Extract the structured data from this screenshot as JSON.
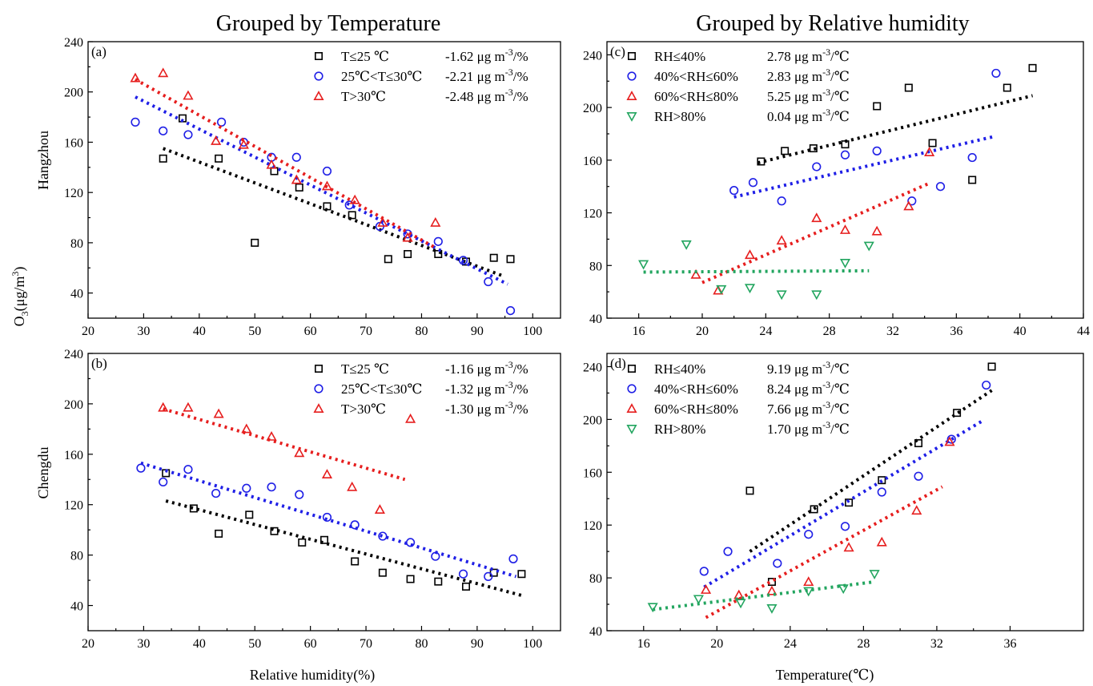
{
  "titles": {
    "left": "Grouped by Temperature",
    "right": "Grouped by Relative humidity"
  },
  "row_labels": {
    "top": "Hangzhou",
    "bottom": "Chengdu"
  },
  "shared_ylabel": {
    "main": "O",
    "sub": "3",
    "unit": "(μg/m",
    "sup": "3",
    "close": ")"
  },
  "xlabels": {
    "left": "Relative humidity(%)",
    "right": "Temperature(℃)"
  },
  "colors": {
    "black": "#000000",
    "blue": "#1f1fe6",
    "red": "#e61e1e",
    "green": "#22a55f"
  },
  "chart_data": [
    {
      "id": "a",
      "panel_label": "(a)",
      "type": "scatter",
      "xlim": [
        20,
        105
      ],
      "ylim": [
        20,
        240
      ],
      "xticks": [
        20,
        30,
        40,
        50,
        60,
        70,
        80,
        90,
        100
      ],
      "yticks": [
        40,
        80,
        120,
        160,
        200,
        240
      ],
      "legend_position": "top-right",
      "series": [
        {
          "name": "T≤25 ℃",
          "slope": "-1.62 μg m",
          "slope_exp": "-3",
          "slope_unit": "/%",
          "marker": "square",
          "color": "black",
          "points": [
            [
              33.5,
              147
            ],
            [
              37,
              179
            ],
            [
              43.5,
              147
            ],
            [
              50,
              80
            ],
            [
              53.5,
              137
            ],
            [
              58,
              124
            ],
            [
              63,
              109
            ],
            [
              67.5,
              102
            ],
            [
              74,
              67
            ],
            [
              77.5,
              71
            ],
            [
              83,
              71
            ],
            [
              88,
              65
            ],
            [
              93,
              68
            ],
            [
              96,
              67
            ]
          ],
          "trend": [
            [
              33.5,
              155
            ],
            [
              95,
              53
            ]
          ]
        },
        {
          "name": "25℃<T≤30℃",
          "slope": "-2.21 μg m",
          "slope_exp": "-3",
          "slope_unit": "/%",
          "marker": "circle",
          "color": "blue",
          "points": [
            [
              28.5,
              176
            ],
            [
              33.5,
              169
            ],
            [
              38,
              166
            ],
            [
              44,
              176
            ],
            [
              48,
              160
            ],
            [
              53,
              148
            ],
            [
              57.5,
              148
            ],
            [
              63,
              137
            ],
            [
              67,
              110
            ],
            [
              72.5,
              93
            ],
            [
              77.5,
              87
            ],
            [
              83,
              81
            ],
            [
              87.5,
              66
            ],
            [
              92,
              49
            ],
            [
              96,
              26
            ]
          ],
          "trend": [
            [
              28.5,
              196
            ],
            [
              95.5,
              47
            ]
          ]
        },
        {
          "name": "T>30℃",
          "slope": "-2.48 μg m",
          "slope_exp": "-3",
          "slope_unit": "/%",
          "marker": "triangle-up",
          "color": "red",
          "points": [
            [
              28.5,
              211
            ],
            [
              33.5,
              215
            ],
            [
              38,
              197
            ],
            [
              43,
              161
            ],
            [
              48,
              158
            ],
            [
              53,
              142
            ],
            [
              57.5,
              130
            ],
            [
              63,
              125
            ],
            [
              68,
              114
            ],
            [
              73,
              96
            ],
            [
              77.5,
              84
            ],
            [
              82.5,
              96
            ]
          ],
          "trend": [
            [
              28.5,
              210
            ],
            [
              82.5,
              76
            ]
          ]
        }
      ]
    },
    {
      "id": "b",
      "panel_label": "(b)",
      "type": "scatter",
      "xlim": [
        20,
        105
      ],
      "ylim": [
        20,
        240
      ],
      "xticks": [
        20,
        30,
        40,
        50,
        60,
        70,
        80,
        90,
        100
      ],
      "yticks": [
        40,
        80,
        120,
        160,
        200,
        240
      ],
      "legend_position": "top-right",
      "series": [
        {
          "name": "T≤25 ℃",
          "slope": "-1.16 μg m",
          "slope_exp": "-3",
          "slope_unit": "/%",
          "marker": "square",
          "color": "black",
          "points": [
            [
              34,
              145
            ],
            [
              39,
              117
            ],
            [
              43.5,
              97
            ],
            [
              49,
              112
            ],
            [
              53.5,
              99
            ],
            [
              58.5,
              90
            ],
            [
              62.5,
              92
            ],
            [
              68,
              75
            ],
            [
              73,
              66
            ],
            [
              78,
              61
            ],
            [
              83,
              59
            ],
            [
              88,
              55
            ],
            [
              93,
              66
            ],
            [
              98,
              65
            ]
          ],
          "trend": [
            [
              34,
              123
            ],
            [
              98,
              48
            ]
          ]
        },
        {
          "name": "25℃<T≤30℃",
          "slope": "-1.32 μg m",
          "slope_exp": "-3",
          "slope_unit": "/%",
          "marker": "circle",
          "color": "blue",
          "points": [
            [
              29.5,
              149
            ],
            [
              33.5,
              138
            ],
            [
              38,
              148
            ],
            [
              43,
              129
            ],
            [
              48.5,
              133
            ],
            [
              53,
              134
            ],
            [
              58,
              128
            ],
            [
              63,
              110
            ],
            [
              68,
              104
            ],
            [
              73,
              95
            ],
            [
              78,
              90
            ],
            [
              82.5,
              79
            ],
            [
              87.5,
              65
            ],
            [
              92,
              63
            ],
            [
              96.5,
              77
            ]
          ],
          "trend": [
            [
              29.5,
              153
            ],
            [
              97,
              63
            ]
          ]
        },
        {
          "name": "T>30℃",
          "slope": "-1.30 μg m",
          "slope_exp": "-3",
          "slope_unit": "/%",
          "marker": "triangle-up",
          "color": "red",
          "points": [
            [
              33.5,
              197
            ],
            [
              38,
              197
            ],
            [
              43.5,
              192
            ],
            [
              48.5,
              180
            ],
            [
              53,
              174
            ],
            [
              58,
              161
            ],
            [
              63,
              144
            ],
            [
              67.5,
              134
            ],
            [
              72.5,
              116
            ],
            [
              78,
              188
            ]
          ],
          "trend": [
            [
              33.5,
              196
            ],
            [
              77,
              140
            ]
          ]
        }
      ]
    },
    {
      "id": "c",
      "panel_label": "(c)",
      "type": "scatter",
      "xlim": [
        14,
        44
      ],
      "ylim": [
        40,
        250
      ],
      "xticks": [
        16,
        20,
        24,
        28,
        32,
        36,
        40,
        44
      ],
      "yticks": [
        40,
        80,
        120,
        160,
        200,
        240
      ],
      "legend_position": "top-left",
      "series": [
        {
          "name": "RH≤40%",
          "slope": "2.78 μg m",
          "slope_exp": "-3",
          "slope_unit": "/℃",
          "marker": "square",
          "color": "black",
          "points": [
            [
              23.7,
              159
            ],
            [
              25.2,
              167
            ],
            [
              27,
              169
            ],
            [
              29,
              172
            ],
            [
              31,
              201
            ],
            [
              33,
              215
            ],
            [
              34.5,
              173
            ],
            [
              37,
              145
            ],
            [
              39.2,
              215
            ],
            [
              40.8,
              230
            ]
          ],
          "trend": [
            [
              23.5,
              158
            ],
            [
              40.8,
              209
            ]
          ]
        },
        {
          "name": "40%<RH≤60%",
          "slope": "2.83 μg m",
          "slope_exp": "-3",
          "slope_unit": "/℃",
          "marker": "circle",
          "color": "blue",
          "points": [
            [
              22,
              137
            ],
            [
              23.2,
              143
            ],
            [
              25,
              129
            ],
            [
              27.2,
              155
            ],
            [
              29,
              164
            ],
            [
              31,
              167
            ],
            [
              33.2,
              129
            ],
            [
              35,
              140
            ],
            [
              37,
              162
            ],
            [
              38.5,
              226
            ]
          ],
          "trend": [
            [
              22,
              132
            ],
            [
              38.4,
              178
            ]
          ]
        },
        {
          "name": "60%<RH≤80%",
          "slope": "5.25 μg m",
          "slope_exp": "-3",
          "slope_unit": "/℃",
          "marker": "triangle-up",
          "color": "red",
          "points": [
            [
              19.6,
              73
            ],
            [
              21,
              61
            ],
            [
              23,
              88
            ],
            [
              25,
              99
            ],
            [
              27.2,
              116
            ],
            [
              29,
              107
            ],
            [
              31,
              106
            ],
            [
              33,
              125
            ],
            [
              34.3,
              166
            ]
          ],
          "trend": [
            [
              20,
              67
            ],
            [
              34.4,
              143
            ]
          ]
        },
        {
          "name": "RH>80%",
          "slope": "0.04 μg m",
          "slope_exp": "-3",
          "slope_unit": "/℃",
          "marker": "triangle-down",
          "color": "green",
          "points": [
            [
              16.3,
              81
            ],
            [
              19,
              96
            ],
            [
              21.2,
              62
            ],
            [
              23,
              63
            ],
            [
              25,
              58
            ],
            [
              27.2,
              58
            ],
            [
              29,
              82
            ],
            [
              30.5,
              95
            ]
          ],
          "trend": [
            [
              16.3,
              75
            ],
            [
              30.5,
              76
            ]
          ]
        }
      ]
    },
    {
      "id": "d",
      "panel_label": "(d)",
      "type": "scatter",
      "xlim": [
        14,
        40
      ],
      "ylim": [
        40,
        250
      ],
      "xticks": [
        16,
        20,
        24,
        28,
        32,
        36
      ],
      "yticks": [
        40,
        80,
        120,
        160,
        200,
        240
      ],
      "legend_position": "top-left",
      "series": [
        {
          "name": "RH≤40%",
          "slope": "9.19 μg m",
          "slope_exp": "-3",
          "slope_unit": "/℃",
          "marker": "square",
          "color": "black",
          "points": [
            [
              21.8,
              146
            ],
            [
              23,
              77
            ],
            [
              25.3,
              132
            ],
            [
              27.2,
              137
            ],
            [
              29,
              154
            ],
            [
              31,
              182
            ],
            [
              33.1,
              205
            ],
            [
              35,
              240
            ]
          ],
          "trend": [
            [
              21.8,
              100
            ],
            [
              35,
              222
            ]
          ]
        },
        {
          "name": "40%<RH≤60%",
          "slope": "8.24 μg m",
          "slope_exp": "-3",
          "slope_unit": "/℃",
          "marker": "circle",
          "color": "blue",
          "points": [
            [
              19.3,
              85
            ],
            [
              20.6,
              100
            ],
            [
              23.3,
              91
            ],
            [
              25,
              113
            ],
            [
              27,
              119
            ],
            [
              29,
              145
            ],
            [
              31,
              157
            ],
            [
              32.8,
              185
            ],
            [
              34.7,
              226
            ]
          ],
          "trend": [
            [
              19.3,
              73
            ],
            [
              34.5,
              199
            ]
          ]
        },
        {
          "name": "60%<RH≤80%",
          "slope": "7.66 μg m",
          "slope_exp": "-3",
          "slope_unit": "/℃",
          "marker": "triangle-up",
          "color": "red",
          "points": [
            [
              19.4,
              71
            ],
            [
              21.2,
              67
            ],
            [
              23,
              70
            ],
            [
              25,
              77
            ],
            [
              27.2,
              103
            ],
            [
              29,
              107
            ],
            [
              30.9,
              131
            ],
            [
              32.7,
              183
            ]
          ],
          "trend": [
            [
              19.4,
              50
            ],
            [
              32.3,
              149
            ]
          ]
        },
        {
          "name": "RH>80%",
          "slope": "1.70 μg m",
          "slope_exp": "-3",
          "slope_unit": "/℃",
          "marker": "triangle-down",
          "color": "green",
          "points": [
            [
              16.5,
              58
            ],
            [
              19,
              64
            ],
            [
              21.3,
              61
            ],
            [
              23,
              57
            ],
            [
              25,
              70
            ],
            [
              26.9,
              72
            ],
            [
              28.6,
              83
            ]
          ],
          "trend": [
            [
              16.5,
              56
            ],
            [
              28.6,
              77
            ]
          ]
        }
      ]
    }
  ]
}
